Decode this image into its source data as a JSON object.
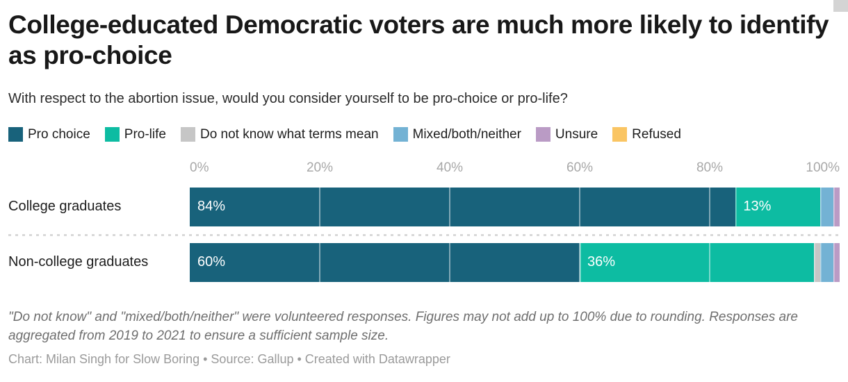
{
  "header": {
    "title": "College-educated Democratic voters are much more likely to identify as pro-choice",
    "subtitle": "With respect to the abortion issue, would you consider yourself to be pro-choice or pro-life?"
  },
  "chart_data": {
    "type": "bar",
    "stacked": true,
    "orientation": "horizontal",
    "title": "College-educated Democratic voters are much more likely to identify as pro-choice",
    "subtitle": "With respect to the abortion issue, would you consider yourself to be pro-choice or pro-life?",
    "categories": [
      "College graduates",
      "Non-college graduates"
    ],
    "series": [
      {
        "name": "Pro choice",
        "color": "#18627B",
        "values": [
          84,
          60
        ]
      },
      {
        "name": "Pro-life",
        "color": "#0DBCA2",
        "values": [
          13,
          36
        ]
      },
      {
        "name": "Do not know what terms mean",
        "color": "#C6C6C6",
        "values": [
          0,
          1
        ]
      },
      {
        "name": "Mixed/both/neither",
        "color": "#73B2D4",
        "values": [
          2,
          2
        ]
      },
      {
        "name": "Unsure",
        "color": "#BA9BC5",
        "values": [
          1,
          1
        ]
      },
      {
        "name": "Refused",
        "color": "#FAC563",
        "values": [
          0,
          0
        ]
      }
    ],
    "x_ticks": [
      {
        "value": 0,
        "label": "0%"
      },
      {
        "value": 20,
        "label": "20%"
      },
      {
        "value": 40,
        "label": "40%"
      },
      {
        "value": 60,
        "label": "60%"
      },
      {
        "value": 80,
        "label": "80%"
      },
      {
        "value": 100,
        "label": "100%"
      }
    ],
    "xlim": [
      0,
      100
    ],
    "gridlines": [
      20,
      40,
      60,
      80
    ],
    "legend_position": "top",
    "value_label_suffix": "%",
    "value_label_min": 10
  },
  "footnote": "\"Do not know\" and \"mixed/both/neither\" were volunteered responses. Figures may not add up to 100% due to rounding. Responses are aggregated from 2019 to 2021 to ensure a sufficient sample size.",
  "credit": "Chart: Milan Singh for Slow Boring • Source: Gallup • Created with Datawrapper"
}
